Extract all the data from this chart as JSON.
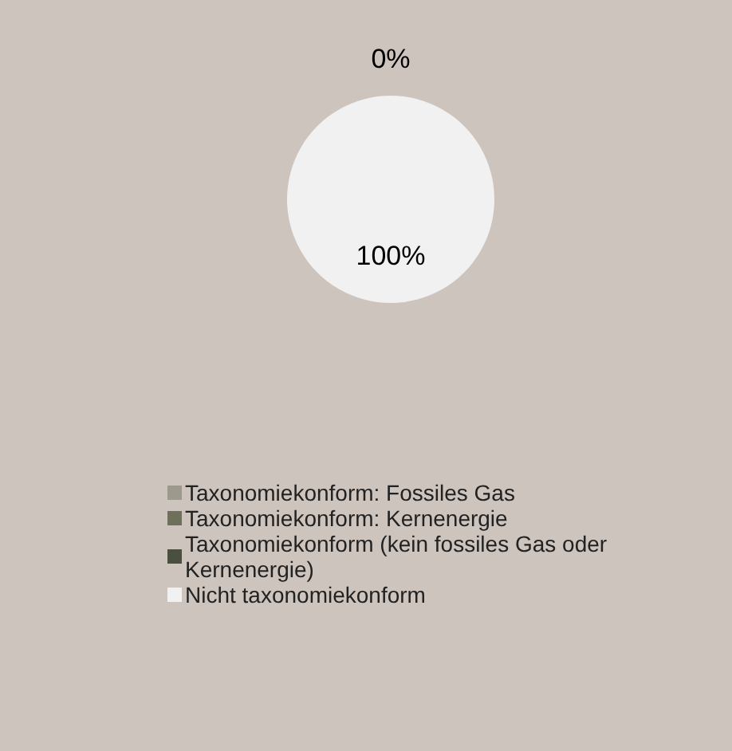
{
  "chart_data": {
    "type": "pie",
    "categories": [
      "Taxonomiekonform: Fossiles Gas",
      "Taxonomiekonform: Kernenergie",
      "Taxonomiekonform (kein fossiles Gas oder Kernenergie)",
      "Nicht taxonomiekonform"
    ],
    "values": [
      0,
      0,
      0,
      100
    ],
    "colors": [
      "#9b9a8c",
      "#6e705c",
      "#4b4f3d",
      "#f2f1f1"
    ],
    "value_labels": [
      null,
      null,
      "0%",
      "100%"
    ],
    "legend": "bottom"
  }
}
